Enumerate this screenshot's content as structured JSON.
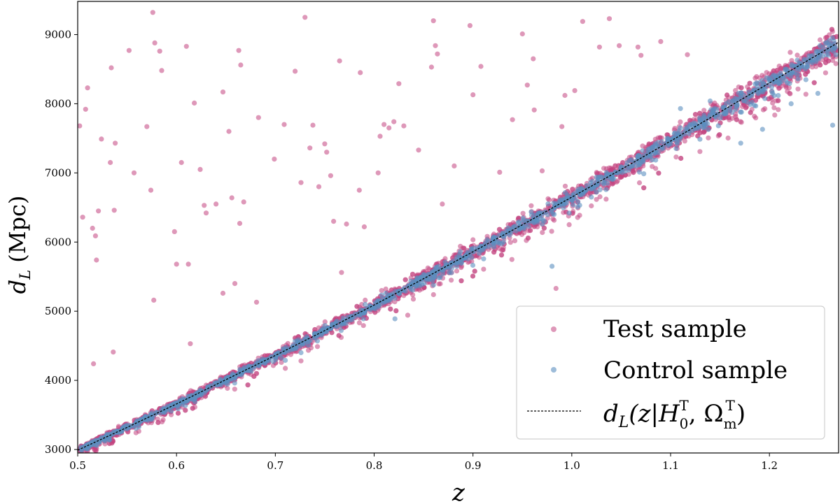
{
  "chart_data": {
    "type": "scatter",
    "xlabel": "z",
    "ylabel_main": "d",
    "ylabel_sub": "L",
    "ylabel_unit": " (Mpc)",
    "xlim": [
      0.5,
      1.27
    ],
    "ylim": [
      2950,
      9480
    ],
    "xticks": [
      0.5,
      0.6,
      0.7,
      0.8,
      0.9,
      1.0,
      1.1,
      1.2
    ],
    "xtick_labels": [
      "0.5",
      "0.6",
      "0.7",
      "0.8",
      "0.9",
      "1.0",
      "1.1",
      "1.2"
    ],
    "yticks": [
      3000,
      4000,
      5000,
      6000,
      7000,
      8000,
      9000
    ],
    "ytick_labels": [
      "3000",
      "4000",
      "5000",
      "6000",
      "7000",
      "8000",
      "9000"
    ],
    "grid": false,
    "legend_position": "bottom-right",
    "colors": {
      "test": "#c2437f",
      "control": "#5b8fbf",
      "line": "#000000"
    },
    "series": [
      {
        "name": "Test sample",
        "kind": "scatter",
        "trend_x": [
          0.5,
          0.6,
          0.7,
          0.8,
          0.9,
          1.0,
          1.1,
          1.2,
          1.27
        ],
        "trend_y": [
          2990,
          3660,
          4360,
          5090,
          5860,
          6650,
          7460,
          8300,
          8890
        ],
        "scatter_sigma": 90,
        "n_band_points": 2600,
        "outliers": [
          [
            0.502,
            7680
          ],
          [
            0.505,
            6360
          ],
          [
            0.508,
            7920
          ],
          [
            0.51,
            8230
          ],
          [
            0.515,
            6200
          ],
          [
            0.516,
            4240
          ],
          [
            0.518,
            6090
          ],
          [
            0.519,
            5740
          ],
          [
            0.521,
            6450
          ],
          [
            0.524,
            7490
          ],
          [
            0.533,
            7150
          ],
          [
            0.534,
            8520
          ],
          [
            0.536,
            4410
          ],
          [
            0.537,
            6460
          ],
          [
            0.538,
            7430
          ],
          [
            0.552,
            8770
          ],
          [
            0.557,
            7000
          ],
          [
            0.57,
            7670
          ],
          [
            0.574,
            6750
          ],
          [
            0.576,
            9320
          ],
          [
            0.577,
            5160
          ],
          [
            0.578,
            8880
          ],
          [
            0.583,
            8760
          ],
          [
            0.585,
            8480
          ],
          [
            0.598,
            6150
          ],
          [
            0.6,
            5680
          ],
          [
            0.605,
            7150
          ],
          [
            0.61,
            8830
          ],
          [
            0.612,
            5680
          ],
          [
            0.614,
            4530
          ],
          [
            0.618,
            8010
          ],
          [
            0.624,
            7050
          ],
          [
            0.628,
            6530
          ],
          [
            0.63,
            6420
          ],
          [
            0.64,
            6550
          ],
          [
            0.647,
            8170
          ],
          [
            0.647,
            5260
          ],
          [
            0.653,
            7600
          ],
          [
            0.656,
            6640
          ],
          [
            0.659,
            5400
          ],
          [
            0.663,
            8770
          ],
          [
            0.664,
            6270
          ],
          [
            0.665,
            8560
          ],
          [
            0.668,
            6580
          ],
          [
            0.681,
            5130
          ],
          [
            0.683,
            7800
          ],
          [
            0.699,
            7200
          ],
          [
            0.709,
            7700
          ],
          [
            0.72,
            8470
          ],
          [
            0.726,
            6860
          ],
          [
            0.73,
            9250
          ],
          [
            0.735,
            7360
          ],
          [
            0.738,
            7690
          ],
          [
            0.744,
            6800
          ],
          [
            0.75,
            7420
          ],
          [
            0.752,
            7300
          ],
          [
            0.756,
            6960
          ],
          [
            0.759,
            6300
          ],
          [
            0.765,
            8620
          ],
          [
            0.767,
            5560
          ],
          [
            0.772,
            6260
          ],
          [
            0.785,
            6750
          ],
          [
            0.786,
            8450
          ],
          [
            0.79,
            6220
          ],
          [
            0.804,
            7000
          ],
          [
            0.806,
            7530
          ],
          [
            0.81,
            7700
          ],
          [
            0.815,
            7650
          ],
          [
            0.82,
            7740
          ],
          [
            0.825,
            8290
          ],
          [
            0.83,
            7680
          ],
          [
            0.845,
            7330
          ],
          [
            0.858,
            8530
          ],
          [
            0.86,
            9200
          ],
          [
            0.862,
            8840
          ],
          [
            0.864,
            8720
          ],
          [
            0.869,
            6550
          ],
          [
            0.881,
            7100
          ],
          [
            0.897,
            9130
          ],
          [
            0.9,
            8130
          ],
          [
            0.908,
            8540
          ],
          [
            0.927,
            7010
          ],
          [
            0.94,
            7770
          ],
          [
            0.95,
            9010
          ],
          [
            0.955,
            8270
          ],
          [
            0.961,
            8650
          ],
          [
            0.962,
            7910
          ],
          [
            0.97,
            7030
          ],
          [
            0.984,
            5330
          ],
          [
            0.99,
            7670
          ],
          [
            0.993,
            8120
          ],
          [
            1.003,
            8190
          ],
          [
            1.011,
            9190
          ],
          [
            1.028,
            8820
          ],
          [
            1.038,
            9230
          ],
          [
            1.048,
            8840
          ],
          [
            1.067,
            8820
          ],
          [
            1.07,
            8700
          ],
          [
            1.09,
            8900
          ],
          [
            1.117,
            8710
          ]
        ]
      },
      {
        "name": "Control sample",
        "kind": "scatter",
        "trend_x": [
          0.5,
          0.6,
          0.7,
          0.8,
          0.9,
          1.0,
          1.1,
          1.2,
          1.27
        ],
        "trend_y": [
          2990,
          3660,
          4360,
          5090,
          5860,
          6650,
          7460,
          8300,
          8890
        ],
        "scatter_sigma": 50,
        "n_band_points": 1300,
        "outliers": [
          [
            0.821,
            4890
          ],
          [
            0.876,
            5560
          ],
          [
            0.98,
            5650
          ],
          [
            1.11,
            7930
          ],
          [
            1.171,
            7430
          ],
          [
            1.193,
            7630
          ],
          [
            1.264,
            7690
          ],
          [
            1.222,
            8000
          ],
          [
            1.249,
            8150
          ],
          [
            1.14,
            8040
          ]
        ]
      },
      {
        "name_main": "d",
        "name_sub": "L",
        "name_rest": "(z|H",
        "name_h_sup": "T",
        "name_h_sub": "0",
        "name_comma": ", Ω",
        "name_o_sup": "T",
        "name_o_sub": "m",
        "name_close": ")",
        "kind": "line",
        "x": [
          0.5,
          0.55,
          0.6,
          0.65,
          0.7,
          0.75,
          0.8,
          0.85,
          0.9,
          0.95,
          1.0,
          1.05,
          1.1,
          1.15,
          1.2,
          1.25,
          1.27
        ],
        "y": [
          2990,
          3320,
          3660,
          4010,
          4360,
          4720,
          5090,
          5470,
          5860,
          6250,
          6650,
          7050,
          7460,
          7880,
          8300,
          8720,
          8890
        ]
      }
    ]
  }
}
